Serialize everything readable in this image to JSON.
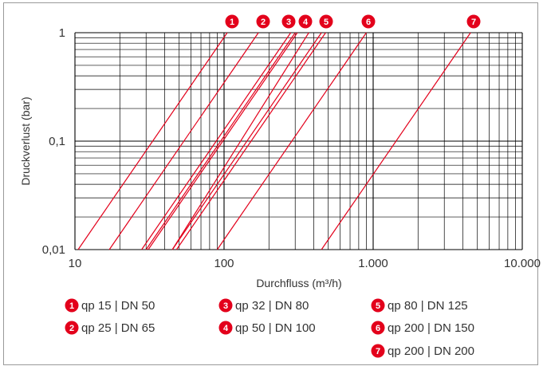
{
  "chart_data": {
    "type": "line",
    "x_scale": "log",
    "y_scale": "log",
    "xlim": [
      10,
      10000
    ],
    "ylim": [
      0.01,
      1
    ],
    "xlabel": "Durchfluss (m³/h)",
    "ylabel": "Druckverlust (bar)",
    "x_ticks": [
      "10",
      "100",
      "1.000",
      "10.000"
    ],
    "y_ticks": [
      "0,01",
      "0,1",
      "1"
    ],
    "grid": true,
    "line_color": "#e3001b",
    "series": [
      {
        "id": "1",
        "name": "qp 15 | DN 50",
        "x": [
          10.5,
          105
        ],
        "y": [
          0.01,
          1
        ]
      },
      {
        "id": "2",
        "name": "qp 25 | DN 65",
        "x": [
          17,
          170
        ],
        "y": [
          0.01,
          1
        ]
      },
      {
        "id": "3",
        "name": "qp 32 | DN 80",
        "x": [
          28,
          280
        ],
        "y": [
          0.01,
          1
        ]
      },
      {
        "id": "4",
        "name": "qp 50 | DN 100",
        "x": [
          31,
          310
        ],
        "y": [
          0.01,
          1
        ]
      },
      {
        "id": "5",
        "name": "qp 80 | DN 125",
        "x": [
          45,
          450
        ],
        "y": [
          0.01,
          1
        ]
      },
      {
        "id": "6",
        "name": "qp 200 | DN 150",
        "x": [
          90,
          900
        ],
        "y": [
          0.01,
          1
        ]
      },
      {
        "id": "7",
        "name": "qp 200 | DN 200",
        "x": [
          450,
          4500
        ],
        "y": [
          0.01,
          1
        ]
      }
    ],
    "extra_lines": [
      {
        "x": [
          45,
          370
        ],
        "y": [
          0.01,
          1
        ]
      },
      {
        "x": [
          30,
          300
        ],
        "y": [
          0.01,
          1
        ]
      },
      {
        "x": [
          48,
          480
        ],
        "y": [
          0.01,
          1
        ]
      }
    ]
  }
}
